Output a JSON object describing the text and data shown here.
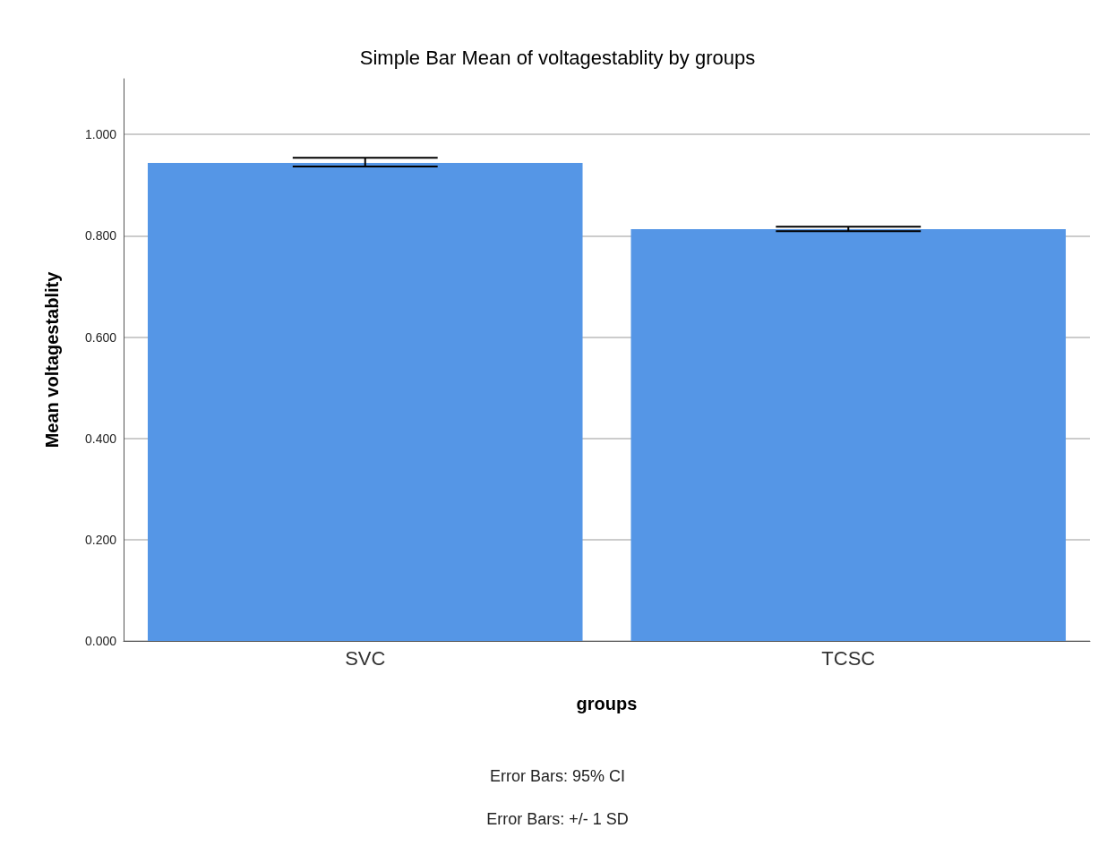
{
  "chart_data": {
    "type": "bar",
    "title": "Simple Bar Mean of voltagestablity by groups",
    "xlabel": "groups",
    "ylabel": "Mean voltagestablity",
    "categories": [
      "SVC",
      "TCSC"
    ],
    "values": [
      0.944,
      0.813
    ],
    "errors": [
      [
        0.937,
        0.954
      ],
      [
        0.809,
        0.818
      ]
    ],
    "color": "#5596e6",
    "ylim": [
      0,
      1.11
    ],
    "yticks": [
      {
        "value": 0,
        "label": "0.000"
      },
      {
        "value": 0.2,
        "label": "0.200"
      },
      {
        "value": 0.4,
        "label": "0.400"
      },
      {
        "value": 0.6,
        "label": "0.600"
      },
      {
        "value": 0.8,
        "label": "0.800"
      },
      {
        "value": 1,
        "label": "1.000"
      }
    ],
    "grid": "y",
    "annotations": [
      "Error Bars: 95% CI",
      "Error Bars: +/- 1 SD"
    ]
  }
}
